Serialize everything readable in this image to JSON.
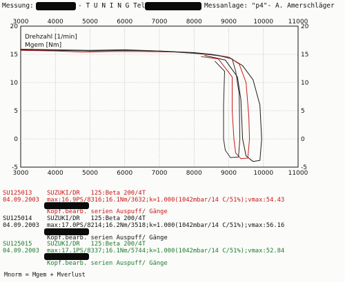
{
  "header": {
    "left_label": "Messung:",
    "mid_label": "- T U N I N G Tel.",
    "right_label": "Messanlage: \"p4\"- A. Amerschläger"
  },
  "chart_data": {
    "type": "line",
    "x_ticks_top": [
      "3000",
      "4000",
      "5000",
      "6000",
      "7000",
      "8000",
      "9000",
      "10000",
      "11000"
    ],
    "x_ticks_bottom": [
      "3000",
      "4000",
      "5000",
      "6000",
      "7000",
      "8000",
      "9000",
      "10000",
      "11000"
    ],
    "y_ticks_left": [
      "20",
      "15",
      "10",
      "5",
      "0",
      "-5"
    ],
    "y_ticks_right": [
      "20",
      "15",
      "10",
      "5",
      "0",
      "-5"
    ],
    "xlim": [
      3000,
      11000
    ],
    "ylim": [
      -5,
      20
    ],
    "legend": [
      "Drehzahl [1/min]",
      "Mgem [Nm]"
    ],
    "grid": true,
    "series": [
      {
        "color": "#1a1a1a",
        "points": [
          [
            3000,
            15.9
          ],
          [
            4000,
            15.8
          ],
          [
            5000,
            15.7
          ],
          [
            6000,
            15.8
          ],
          [
            7000,
            15.6
          ],
          [
            8000,
            15.3
          ],
          [
            8500,
            15.0
          ],
          [
            9000,
            14.5
          ],
          [
            9400,
            13.0
          ],
          [
            9700,
            10.5
          ],
          [
            9900,
            6.0
          ],
          [
            9950,
            0.0
          ],
          [
            9900,
            -3.8
          ],
          [
            9700,
            -4.0
          ],
          [
            9500,
            -3.0
          ],
          [
            9400,
            0.0
          ],
          [
            9350,
            7.0
          ],
          [
            9250,
            11.0
          ],
          [
            8900,
            14.0
          ],
          [
            8300,
            14.8
          ]
        ]
      },
      {
        "color": "#c81818",
        "points": [
          [
            3000,
            15.7
          ],
          [
            4000,
            15.6
          ],
          [
            4800,
            15.4
          ],
          [
            5600,
            15.5
          ],
          [
            6500,
            15.5
          ],
          [
            7500,
            15.4
          ],
          [
            8400,
            15.0
          ],
          [
            9000,
            14.5
          ],
          [
            9300,
            13.3
          ],
          [
            9500,
            10.0
          ],
          [
            9580,
            4.0
          ],
          [
            9600,
            0.0
          ],
          [
            9550,
            -3.4
          ],
          [
            9350,
            -3.5
          ],
          [
            9200,
            -2.5
          ],
          [
            9150,
            0.0
          ],
          [
            9100,
            5.0
          ],
          [
            9100,
            11.0
          ],
          [
            8700,
            14.2
          ],
          [
            8200,
            14.6
          ]
        ]
      },
      {
        "color": "#2a2a2a",
        "points": [
          [
            3000,
            15.8
          ],
          [
            4000,
            15.7
          ],
          [
            5000,
            15.6
          ],
          [
            6000,
            15.7
          ],
          [
            7000,
            15.6
          ],
          [
            8000,
            15.2
          ],
          [
            8700,
            14.8
          ],
          [
            9100,
            14.2
          ],
          [
            9200,
            12.0
          ],
          [
            9300,
            8.0
          ],
          [
            9320,
            0.0
          ],
          [
            9280,
            -3.2
          ],
          [
            9050,
            -3.3
          ],
          [
            8900,
            -2.0
          ],
          [
            8850,
            0.0
          ],
          [
            8850,
            6.0
          ],
          [
            8880,
            12.0
          ],
          [
            8600,
            13.8
          ]
        ]
      }
    ]
  },
  "runs": [
    {
      "id": "SU125013",
      "date": "04.09.2003",
      "model": "SUZUKI/DR   125:Beta 200/4T",
      "stats": "max:16.9PS/8316;16.1Nm/3632;k=1.000(1042mbar/14 C/51%);vmax:54.43",
      "note": "Kopf.bearb. serien Auspuff/ Gänge",
      "color": "#c81818"
    },
    {
      "id": "SU125014",
      "date": "04.09.2003",
      "model": "SUZUKI/DR   125:Beta 200/4T",
      "stats": "max:17.0PS/8214;16.2Nm/3518;k=1.000(1042mbar/14 C/51%);vmax:56.16",
      "note": "Kopf.bearb. serien Auspuff/ Gänge",
      "color": "#111111"
    },
    {
      "id": "SU125015",
      "date": "04.09.2003",
      "model": "SUZUKI/DR   125:Beta 200/4T",
      "stats": "max:17.1PS/8337;16.1Nm/5744;k=1.000(1042mbar/14 C/51%);vmax:52.84",
      "note": "Kopf.bearb. serien Auspuff/ Gänge",
      "color": "#1d7a2e"
    }
  ],
  "footer": {
    "formula": "Mnorm = Mgem + Mverlust"
  }
}
